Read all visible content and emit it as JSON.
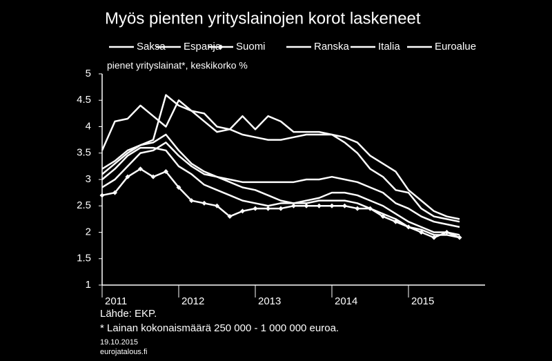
{
  "chart_data": {
    "type": "line",
    "title": "Myös pienten yrityslainojen korot laskeneet",
    "subtitle": "pienet yrityslainat*, keskikorko %",
    "source": "Lähde: EKP.",
    "note": "* Lainan kokonaismäärä 250 000 - 1 000 000 euroa.",
    "date": "19.10.2015",
    "site": "eurojatalous.fi",
    "x": [
      2011,
      2011.167,
      2011.333,
      2011.5,
      2011.667,
      2011.833,
      2012,
      2012.167,
      2012.333,
      2012.5,
      2012.667,
      2012.833,
      2013,
      2013.167,
      2013.333,
      2013.5,
      2013.667,
      2013.833,
      2014,
      2014.167,
      2014.333,
      2014.5,
      2014.667,
      2014.833,
      2015,
      2015.167,
      2015.333,
      2015.5,
      2015.667
    ],
    "series": [
      {
        "name": "Saksa",
        "color": "#ffffff",
        "values": [
          3.0,
          3.2,
          3.45,
          3.6,
          3.6,
          3.55,
          3.25,
          3.1,
          2.9,
          2.8,
          2.7,
          2.6,
          2.55,
          2.5,
          2.55,
          2.55,
          2.6,
          2.65,
          2.75,
          2.75,
          2.7,
          2.6,
          2.5,
          2.35,
          2.2,
          2.1,
          2.0,
          2.0,
          1.95
        ]
      },
      {
        "name": "Espanja",
        "color": "#ffffff",
        "values": [
          3.55,
          4.1,
          4.15,
          4.4,
          4.2,
          4.0,
          4.5,
          4.3,
          4.25,
          4.0,
          3.95,
          4.2,
          3.95,
          4.2,
          4.1,
          3.9,
          3.9,
          3.9,
          3.85,
          3.8,
          3.7,
          3.45,
          3.3,
          3.15,
          2.8,
          2.6,
          2.4,
          2.3,
          2.25
        ]
      },
      {
        "name": "Suomi",
        "color": "#ffffff",
        "marker": "diamond",
        "values": [
          2.7,
          2.75,
          3.05,
          3.2,
          3.05,
          3.15,
          2.85,
          2.6,
          2.55,
          2.5,
          2.3,
          2.4,
          2.45,
          2.45,
          2.45,
          2.5,
          2.5,
          2.5,
          2.5,
          2.5,
          2.45,
          2.45,
          2.3,
          2.2,
          2.1,
          2.0,
          1.9,
          2.0,
          1.9
        ]
      },
      {
        "name": "Ranska",
        "color": "#ffffff",
        "values": [
          2.85,
          3.0,
          3.25,
          3.5,
          3.55,
          3.7,
          3.45,
          3.25,
          3.1,
          3.05,
          3.0,
          2.95,
          2.95,
          2.95,
          2.95,
          2.95,
          3.0,
          3.0,
          3.05,
          3.0,
          2.95,
          2.85,
          2.75,
          2.55,
          2.45,
          2.3,
          2.2,
          2.15,
          2.1
        ]
      },
      {
        "name": "Italia",
        "color": "#ffffff",
        "values": [
          3.2,
          3.35,
          3.55,
          3.65,
          3.75,
          4.6,
          4.4,
          4.3,
          4.1,
          3.9,
          3.95,
          3.85,
          3.8,
          3.75,
          3.75,
          3.8,
          3.85,
          3.85,
          3.85,
          3.7,
          3.5,
          3.2,
          3.05,
          2.8,
          2.75,
          2.45,
          2.3,
          2.25,
          2.2
        ]
      },
      {
        "name": "Euroalue",
        "color": "#ffffff",
        "values": [
          3.1,
          3.3,
          3.5,
          3.65,
          3.7,
          3.85,
          3.55,
          3.3,
          3.15,
          3.05,
          2.95,
          2.85,
          2.8,
          2.7,
          2.6,
          2.55,
          2.55,
          2.6,
          2.6,
          2.6,
          2.55,
          2.45,
          2.35,
          2.25,
          2.1,
          2.05,
          1.95,
          1.95,
          1.9
        ]
      }
    ],
    "xlim": [
      2011,
      2016
    ],
    "xticks": [
      2011,
      2012,
      2013,
      2014,
      2015
    ],
    "ylim": [
      1,
      5
    ],
    "yticks": [
      1,
      {
        "value": 1.5,
        "label": "1.5"
      },
      2,
      {
        "value": 2.5,
        "label": "2.5"
      },
      3,
      {
        "value": 3.5,
        "label": "3.5"
      },
      4,
      {
        "value": 4.5,
        "label": "4.5"
      },
      5
    ]
  }
}
